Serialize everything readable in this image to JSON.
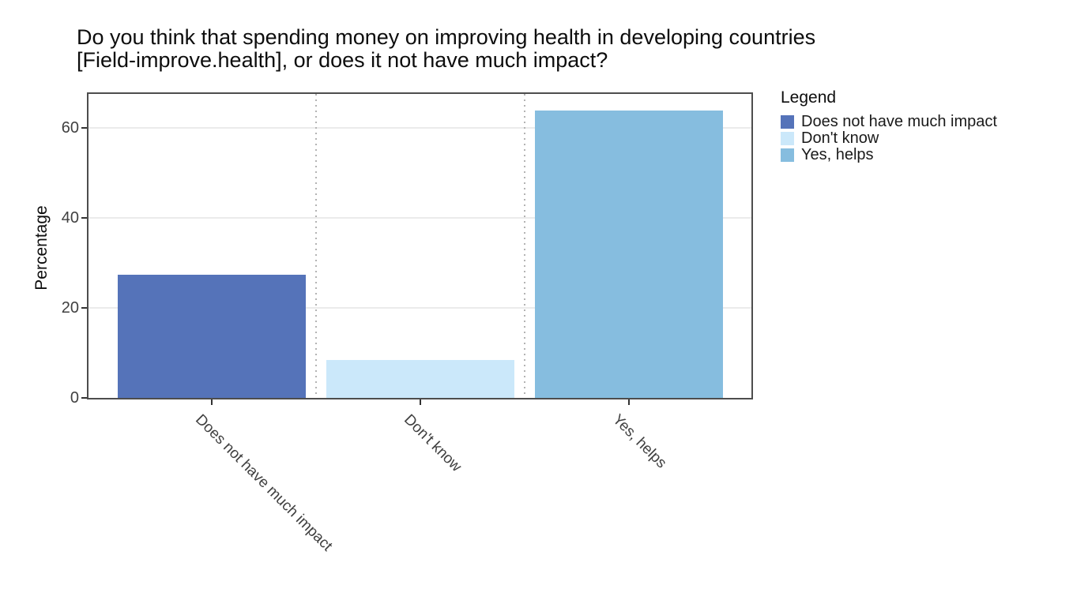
{
  "title": {
    "lines": [
      "Do you think that spending money on improving health in developing countries",
      "[Field-improve.health], or does it not have much impact?"
    ]
  },
  "legend": {
    "title": "Legend",
    "entries": [
      {
        "label": "Does not have much impact",
        "color": "#5573b9"
      },
      {
        "label": "Don't know",
        "color": "#cbe8fa"
      },
      {
        "label": "Yes, helps",
        "color": "#86bddf"
      }
    ]
  },
  "axes": {
    "y": {
      "title": "Percentage",
      "ticks": [
        0,
        20,
        40,
        60
      ]
    },
    "x": {
      "labels": [
        "Does not have much impact",
        "Don't know",
        "Yes, helps"
      ]
    }
  },
  "chart_data": {
    "type": "bar",
    "title": "Do you think that spending money on improving health in developing countries [Field-improve.health], or does it not have much impact?",
    "categories": [
      "Does not have much impact",
      "Don't know",
      "Yes, helps"
    ],
    "values": [
      27.4,
      8.4,
      64
    ],
    "colors": [
      "#5573b9",
      "#cbe8fa",
      "#86bddf"
    ],
    "xlabel": "",
    "ylabel": "Percentage",
    "yticks": [
      0,
      20,
      40,
      60
    ],
    "ylim": [
      0,
      67.6
    ],
    "grid": {
      "horizontal_major": true,
      "vertical_dotted_separators": true
    },
    "legend_position": "right",
    "legend_title": "Legend"
  },
  "style": {
    "background": "#ffffff",
    "panel_border_color": "#4d4d4d",
    "gridline_color": "#ebebeb",
    "separator_color": "#b3b3b3",
    "axis_text_color": "#404040",
    "text_color": "#0d0d0d"
  }
}
